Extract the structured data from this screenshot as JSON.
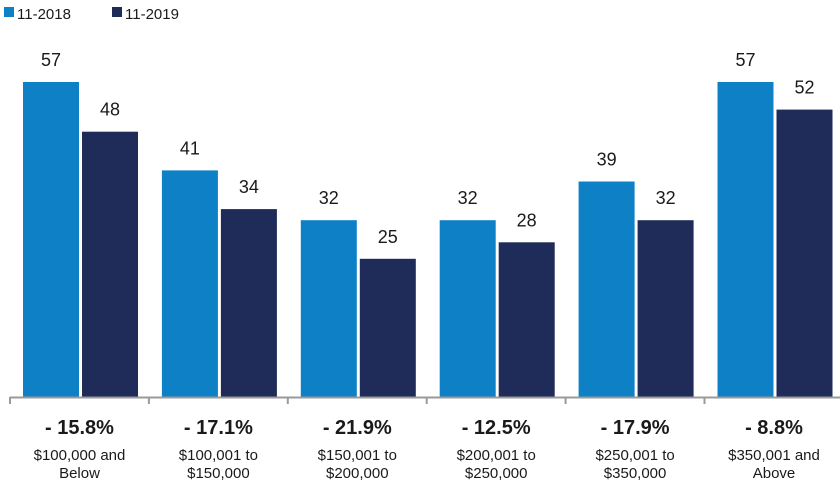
{
  "colors": {
    "series_2018": "#0d80c6",
    "series_2019": "#1f2b58",
    "axis": "#9a9a9a"
  },
  "chart_data": {
    "type": "bar",
    "title": "",
    "xlabel": "",
    "ylabel": "",
    "ylim": [
      0,
      57
    ],
    "grid": false,
    "legend_position": "top-left",
    "categories": [
      [
        "$100,000 and",
        "Below"
      ],
      [
        "$100,001 to",
        "$150,000"
      ],
      [
        "$150,001 to",
        "$200,000"
      ],
      [
        "$200,001 to",
        "$250,000"
      ],
      [
        "$250,001 to",
        "$350,000"
      ],
      [
        "$350,001 and",
        "Above"
      ]
    ],
    "series": [
      {
        "name": "11-2018",
        "values": [
          57,
          41,
          32,
          32,
          39,
          57
        ]
      },
      {
        "name": "11-2019",
        "values": [
          48,
          34,
          25,
          28,
          32,
          52
        ]
      }
    ],
    "changes": [
      "- 15.8%",
      "- 17.1%",
      "- 21.9%",
      "- 12.5%",
      "- 17.9%",
      "- 8.8%"
    ]
  }
}
